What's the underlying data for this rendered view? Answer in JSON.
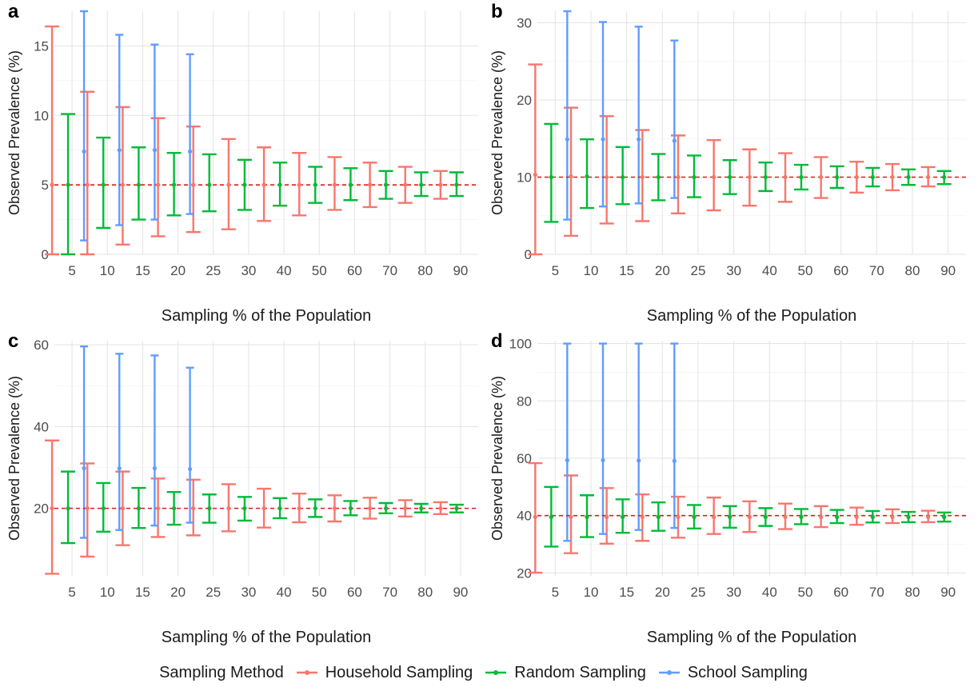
{
  "legend": {
    "title": "Sampling Method",
    "items": [
      {
        "label": "Household Sampling",
        "color": "#F8766D"
      },
      {
        "label": "Random Sampling",
        "color": "#00BA38"
      },
      {
        "label": "School Sampling",
        "color": "#619CFF"
      }
    ]
  },
  "chart_data": [
    {
      "panel": "a",
      "type": "errorbar",
      "xlabel": "Sampling % of the Population",
      "ylabel": "Observed Prevalence (%)",
      "categories": [
        "5",
        "10",
        "15",
        "20",
        "25",
        "30",
        "40",
        "50",
        "60",
        "70",
        "80",
        "90"
      ],
      "ylim": [
        0,
        17.5
      ],
      "yticks": [
        0,
        5,
        10,
        15
      ],
      "reference_line": 5,
      "grid": true,
      "legend": "bottom",
      "series": [
        {
          "name": "Household Sampling",
          "mean": [
            5,
            5,
            5,
            5,
            5,
            5,
            5,
            5,
            5,
            5,
            5,
            5
          ],
          "low": [
            0,
            0,
            0.7,
            1.3,
            1.6,
            1.8,
            2.4,
            2.8,
            3.2,
            3.4,
            3.7,
            4.0
          ],
          "high": [
            16.4,
            11.7,
            10.6,
            9.8,
            9.2,
            8.3,
            7.7,
            7.3,
            7.0,
            6.6,
            6.3,
            6.0
          ]
        },
        {
          "name": "Random Sampling",
          "mean": [
            5,
            5,
            5,
            5,
            5,
            5,
            5,
            5,
            5,
            5,
            5,
            5
          ],
          "low": [
            0,
            1.9,
            2.5,
            2.8,
            3.1,
            3.2,
            3.5,
            3.7,
            3.9,
            4.0,
            4.2,
            4.2
          ],
          "high": [
            10.1,
            8.4,
            7.7,
            7.3,
            7.2,
            6.8,
            6.6,
            6.3,
            6.2,
            6.0,
            5.9,
            5.9
          ]
        },
        {
          "name": "School Sampling",
          "mean": [
            7.4,
            7.5,
            7.5,
            7.4,
            null,
            null,
            null,
            null,
            null,
            null,
            null,
            null
          ],
          "low": [
            1.0,
            2.1,
            2.5,
            2.9,
            null,
            null,
            null,
            null,
            null,
            null,
            null,
            null
          ],
          "high": [
            17.5,
            15.8,
            15.1,
            14.4,
            null,
            null,
            null,
            null,
            null,
            null,
            null,
            null
          ]
        }
      ]
    },
    {
      "panel": "b",
      "type": "errorbar",
      "xlabel": "Sampling % of the Population",
      "ylabel": "Observed Prevalence (%)",
      "categories": [
        "5",
        "10",
        "15",
        "20",
        "25",
        "30",
        "40",
        "50",
        "60",
        "70",
        "80",
        "90"
      ],
      "ylim": [
        0,
        31.5
      ],
      "yticks": [
        0,
        10,
        20,
        30
      ],
      "reference_line": 10,
      "grid": true,
      "legend": "bottom",
      "series": [
        {
          "name": "Household Sampling",
          "mean": [
            10.3,
            10.1,
            10,
            10,
            10,
            10,
            10,
            10,
            10,
            10,
            10,
            10
          ],
          "low": [
            0,
            2.4,
            4.0,
            4.3,
            5.3,
            5.7,
            6.3,
            6.8,
            7.3,
            8.0,
            8.3,
            8.8
          ],
          "high": [
            24.6,
            19.0,
            17.9,
            16.1,
            15.4,
            14.8,
            13.6,
            13.1,
            12.6,
            12.0,
            11.7,
            11.3
          ]
        },
        {
          "name": "Random Sampling",
          "mean": [
            10,
            10.1,
            10,
            10,
            10,
            10,
            10,
            10,
            10,
            10,
            10,
            10
          ],
          "low": [
            4.2,
            6.0,
            6.5,
            7.0,
            7.4,
            7.8,
            8.2,
            8.4,
            8.6,
            8.8,
            9.0,
            9.1
          ],
          "high": [
            16.9,
            14.9,
            13.9,
            13.0,
            12.8,
            12.2,
            11.9,
            11.6,
            11.4,
            11.2,
            11.0,
            10.8
          ]
        },
        {
          "name": "School Sampling",
          "mean": [
            14.9,
            14.9,
            14.9,
            14.7,
            null,
            null,
            null,
            null,
            null,
            null,
            null,
            null
          ],
          "low": [
            4.5,
            6.2,
            6.6,
            7.3,
            null,
            null,
            null,
            null,
            null,
            null,
            null,
            null
          ],
          "high": [
            31.5,
            30.1,
            29.5,
            27.7,
            null,
            null,
            null,
            null,
            null,
            null,
            null,
            null
          ]
        }
      ]
    },
    {
      "panel": "c",
      "type": "errorbar",
      "xlabel": "Sampling % of the Population",
      "ylabel": "Observed Prevalence (%)",
      "categories": [
        "5",
        "10",
        "15",
        "20",
        "25",
        "30",
        "40",
        "50",
        "60",
        "70",
        "80",
        "90"
      ],
      "ylim": [
        3.5,
        61
      ],
      "yticks": [
        20,
        40,
        60
      ],
      "reference_line": 20,
      "grid": true,
      "legend": "bottom",
      "series": [
        {
          "name": "Household Sampling",
          "mean": [
            20,
            20,
            20,
            20,
            20,
            20,
            20,
            20,
            20,
            20,
            20,
            20
          ],
          "low": [
            4.0,
            8.2,
            11.0,
            13.0,
            13.4,
            14.4,
            15.3,
            16.6,
            16.8,
            17.5,
            18.0,
            18.6
          ],
          "high": [
            36.6,
            31.0,
            29.0,
            27.3,
            27.0,
            25.9,
            24.8,
            23.6,
            23.2,
            22.6,
            22.0,
            21.5
          ]
        },
        {
          "name": "Random Sampling",
          "mean": [
            20,
            20,
            20,
            20,
            20,
            20,
            20,
            20,
            20,
            20,
            20,
            20
          ],
          "low": [
            11.5,
            14.3,
            15.2,
            16.0,
            16.5,
            17.0,
            17.6,
            17.9,
            18.3,
            18.8,
            19.0,
            19.0
          ],
          "high": [
            29.0,
            26.2,
            25.0,
            24.0,
            23.4,
            22.8,
            22.5,
            22.2,
            21.8,
            21.3,
            21.1,
            20.9
          ]
        },
        {
          "name": "School Sampling",
          "mean": [
            29.8,
            29.8,
            29.8,
            29.6,
            null,
            null,
            null,
            null,
            null,
            null,
            null,
            null
          ],
          "low": [
            12.8,
            14.7,
            15.8,
            16.5,
            null,
            null,
            null,
            null,
            null,
            null,
            null,
            null
          ],
          "high": [
            59.6,
            57.8,
            57.4,
            54.4,
            null,
            null,
            null,
            null,
            null,
            null,
            null,
            null
          ]
        }
      ]
    },
    {
      "panel": "d",
      "type": "errorbar",
      "xlabel": "Sampling % of the Population",
      "ylabel": "Observed Prevalence (%)",
      "categories": [
        "5",
        "10",
        "15",
        "20",
        "25",
        "30",
        "40",
        "50",
        "60",
        "70",
        "80",
        "90"
      ],
      "ylim": [
        19,
        101
      ],
      "yticks": [
        20,
        40,
        60,
        80,
        100
      ],
      "reference_line": 40,
      "grid": true,
      "legend": "bottom",
      "series": [
        {
          "name": "Household Sampling",
          "mean": [
            39.5,
            39.5,
            39.5,
            39.5,
            39.5,
            39.5,
            39.5,
            39.5,
            39.5,
            39.5,
            39.5,
            39.5
          ],
          "low": [
            20.1,
            26.9,
            30.2,
            31.2,
            32.3,
            33.6,
            34.3,
            35.3,
            36.0,
            36.8,
            37.4,
            37.7
          ],
          "high": [
            58.3,
            54.0,
            49.6,
            47.4,
            46.6,
            46.3,
            45.0,
            44.2,
            43.3,
            42.8,
            42.2,
            41.7
          ]
        },
        {
          "name": "Random Sampling",
          "mean": [
            39.5,
            39.5,
            39.5,
            39.5,
            39.5,
            39.5,
            39.5,
            39.5,
            39.5,
            39.5,
            39.5,
            39.5
          ],
          "low": [
            29.2,
            32.5,
            34.0,
            34.7,
            35.5,
            35.8,
            36.4,
            37.0,
            37.4,
            37.6,
            37.7,
            37.9
          ],
          "high": [
            50.0,
            47.1,
            45.7,
            44.6,
            43.7,
            43.3,
            42.6,
            42.3,
            42.0,
            41.6,
            41.3,
            41.1
          ]
        },
        {
          "name": "School Sampling",
          "mean": [
            59.3,
            59.3,
            59.2,
            59.1,
            null,
            null,
            null,
            null,
            null,
            null,
            null,
            null
          ],
          "low": [
            31.2,
            33.6,
            35.0,
            35.7,
            null,
            null,
            null,
            null,
            null,
            null,
            null,
            null
          ],
          "high": [
            100,
            100,
            100,
            100,
            null,
            null,
            null,
            null,
            null,
            null,
            null,
            null
          ]
        }
      ]
    }
  ]
}
